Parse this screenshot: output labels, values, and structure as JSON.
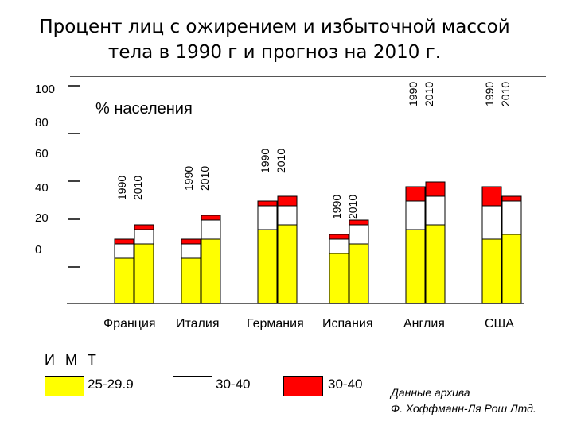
{
  "title": {
    "line1": "Процент лиц с ожирением и избыточной массой",
    "line2": "тела в 1990 г и прогноз на 2010 г."
  },
  "unit_label": "% населения",
  "imt_label": "И М Т",
  "legend": [
    {
      "label": "25-29.9",
      "color": "#ffff00"
    },
    {
      "label": "30-40",
      "color": "#ffffff"
    },
    {
      "label": "30-40",
      "color": "#ff0000"
    }
  ],
  "source": {
    "line1": "Данные архива",
    "line2": "Ф. Хоффманн-Ля Рош Лтд."
  },
  "colors": {
    "yellow": "#ffff00",
    "white": "#ffffff",
    "red": "#ff0000",
    "axis": "#333333"
  },
  "chart_data": {
    "type": "bar",
    "stacked": true,
    "categories": [
      "Франция",
      "Италия",
      "Германия",
      "Испания",
      "Англия",
      "США"
    ],
    "year_labels": [
      "1990",
      "2010"
    ],
    "y_tick_labels": [
      "100",
      "80",
      "60",
      "40",
      "20",
      "0"
    ],
    "ylim": [
      0,
      100
    ],
    "series": [
      {
        "color": "yellow",
        "values": [
          [
            19,
            25
          ],
          [
            19,
            27
          ],
          [
            31,
            33
          ],
          [
            21,
            25
          ],
          [
            31,
            33
          ],
          [
            27,
            29
          ]
        ]
      },
      {
        "color": "white",
        "values": [
          [
            6,
            6
          ],
          [
            6,
            8
          ],
          [
            10,
            8
          ],
          [
            6,
            8
          ],
          [
            12,
            12
          ],
          [
            14,
            14
          ]
        ]
      },
      {
        "color": "red",
        "values": [
          [
            2,
            2
          ],
          [
            2,
            2
          ],
          [
            2,
            4
          ],
          [
            2,
            2
          ],
          [
            6,
            6
          ],
          [
            8,
            2
          ]
        ]
      }
    ]
  }
}
